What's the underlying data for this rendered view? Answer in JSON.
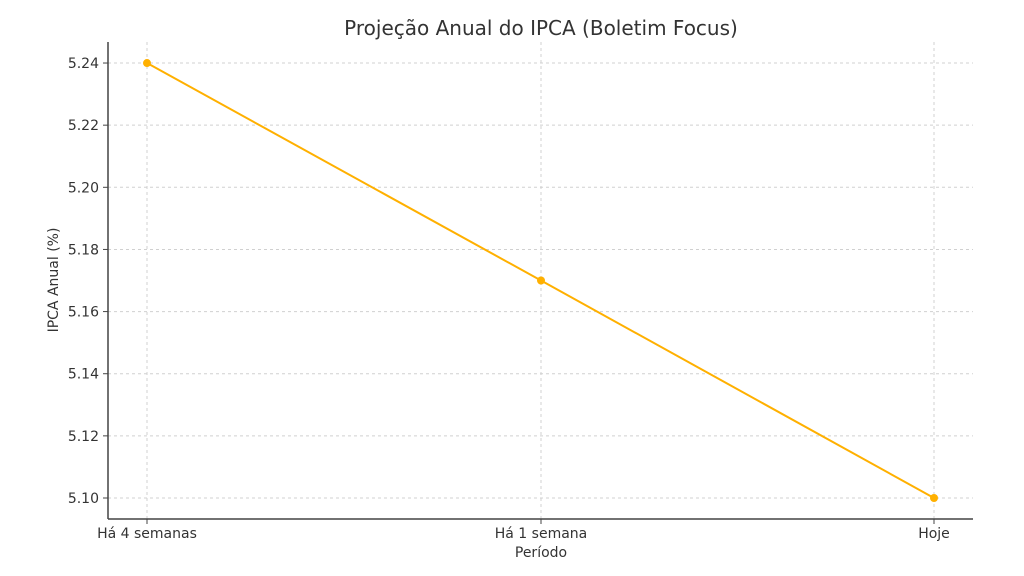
{
  "chart_data": {
    "type": "line",
    "title": "Projeção Anual do IPCA (Boletim Focus)",
    "xlabel": "Período",
    "ylabel": "IPCA Anual (%)",
    "categories": [
      "Há 4 semanas",
      "Há 1 semana",
      "Hoje"
    ],
    "series": [
      {
        "name": "IPCA Anual",
        "values": [
          5.24,
          5.17,
          5.1
        ],
        "color": "#FFB000",
        "marker": "circle"
      }
    ],
    "yticks": [
      "5.10",
      "5.12",
      "5.14",
      "5.16",
      "5.18",
      "5.20",
      "5.22",
      "5.24"
    ],
    "ylim": [
      5.093,
      5.247
    ],
    "grid": true,
    "legend": false
  }
}
